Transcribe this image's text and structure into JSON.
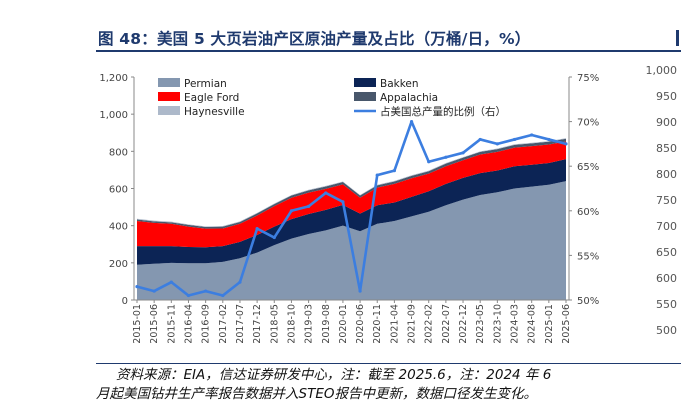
{
  "title": "图 48：美国 5 大页岩油产区原油产量及占比（万桶/日，%）",
  "source_line1": "资料来源：EIA，信达证券研发中心，注：截至 2025.6，注：2024 年 6",
  "source_line2": "月起美国钻井生产率报告数据并入STEO报告中更新，数据口径发生变化。",
  "ghost_axis_labels": [
    "1,000",
    "950",
    "900",
    "850",
    "800",
    "750",
    "700",
    "650",
    "600",
    "550",
    "500"
  ],
  "colors": {
    "title": "#1f3a6e",
    "permian": "#8497b0",
    "bakken": "#0c2455",
    "eagle_ford": "#ff0000",
    "appalachia": "#48576b",
    "haynesville": "#adb9ca",
    "share_line": "#3c7ee0"
  },
  "chart_data": {
    "type": "area",
    "stacked": true,
    "x_ticks": [
      "2015-01",
      "2015-06",
      "2015-11",
      "2016-04",
      "2016-09",
      "2017-02",
      "2017-07",
      "2017-12",
      "2018-05",
      "2018-10",
      "2019-03",
      "2019-08",
      "2020-01",
      "2020-06",
      "2020-11",
      "2021-04",
      "2021-09",
      "2022-02",
      "2022-07",
      "2022-12",
      "2023-05",
      "2023-10",
      "2024-03",
      "2024-08",
      "2025-01",
      "2025-06"
    ],
    "ylim_left": [
      0,
      1200
    ],
    "yticks_left": [
      "0",
      "200",
      "400",
      "600",
      "800",
      "1,000",
      "1,200"
    ],
    "ylim_right": [
      50,
      75
    ],
    "yticks_right": [
      "50%",
      "55%",
      "60%",
      "65%",
      "70%",
      "75%"
    ],
    "legend": [
      "Permian",
      "Bakken",
      "Eagle Ford",
      "Appalachia",
      "Haynesville",
      "占美国总产量的比例（右）"
    ],
    "legend_position": "top",
    "grid": false,
    "series": [
      {
        "name": "Permian",
        "axis": "left",
        "values": [
          190,
          195,
          200,
          198,
          198,
          205,
          225,
          255,
          295,
          330,
          355,
          375,
          400,
          370,
          410,
          425,
          450,
          475,
          510,
          540,
          565,
          580,
          600,
          610,
          620,
          640
        ]
      },
      {
        "name": "Bakken",
        "axis": "left",
        "values": [
          100,
          95,
          90,
          87,
          86,
          85,
          88,
          95,
          100,
          105,
          108,
          110,
          112,
          95,
          100,
          100,
          105,
          110,
          115,
          117,
          118,
          117,
          120,
          118,
          117,
          118
        ]
      },
      {
        "name": "Eagle Ford",
        "axis": "left",
        "values": [
          135,
          125,
          120,
          110,
          100,
          95,
          97,
          105,
          110,
          115,
          115,
          113,
          110,
          85,
          95,
          100,
          100,
          95,
          95,
          95,
          100,
          100,
          100,
          100,
          100,
          95
        ]
      },
      {
        "name": "Appalachia",
        "axis": "left",
        "values": [
          8,
          8,
          8,
          9,
          9,
          10,
          10,
          11,
          11,
          12,
          12,
          13,
          13,
          12,
          12,
          13,
          13,
          13,
          14,
          14,
          14,
          15,
          15,
          15,
          15,
          15
        ]
      },
      {
        "name": "Haynesville",
        "axis": "left",
        "values": [
          4,
          4,
          4,
          3,
          3,
          3,
          3,
          3,
          3,
          3,
          3,
          3,
          3,
          3,
          3,
          3,
          3,
          3,
          3,
          3,
          3,
          3,
          3,
          3,
          3,
          3
        ]
      },
      {
        "name": "占美国总产量的比例（右）",
        "axis": "right",
        "values": [
          51.5,
          51.0,
          52.0,
          50.5,
          51.0,
          50.5,
          52.0,
          58.0,
          57.0,
          60.0,
          60.5,
          62.0,
          61.0,
          51.0,
          64.0,
          64.5,
          70.0,
          65.5,
          66.0,
          66.5,
          68.0,
          67.5,
          68.0,
          68.5,
          68.0,
          67.5
        ]
      }
    ]
  }
}
